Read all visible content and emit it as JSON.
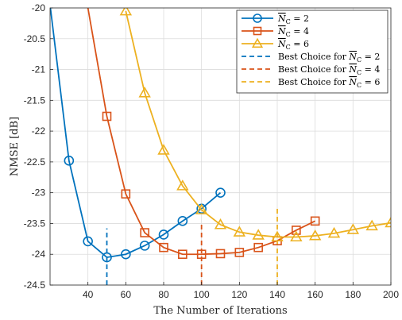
{
  "chart_data": {
    "type": "line",
    "title": "",
    "xlabel": "The Number of Iterations",
    "ylabel": "NMSE [dB]",
    "xlim": [
      20,
      200
    ],
    "ylim": [
      -24.5,
      -20
    ],
    "xticks": [
      40,
      60,
      80,
      100,
      120,
      140,
      160,
      180,
      200
    ],
    "yticks": [
      -24.5,
      -24,
      -23.5,
      -23,
      -22.5,
      -22,
      -21.5,
      -21,
      -20.5,
      -20
    ],
    "xtick_labels": [
      "40",
      "60",
      "80",
      "100",
      "120",
      "140",
      "160",
      "180",
      "200"
    ],
    "ytick_labels": [
      "-24.5",
      "-24",
      "-23.5",
      "-23",
      "-22.5",
      "-22",
      "-21.5",
      "-21",
      "-20.5",
      "-20"
    ],
    "grid": true,
    "legend_position": "top-right",
    "series": [
      {
        "name": "N̅C = 2",
        "legend_var": "N",
        "legend_sub": "C",
        "legend_val": "= 2",
        "color": "#0072BD",
        "marker": "circle",
        "x": [
          20,
          30,
          40,
          50,
          60,
          70,
          80,
          90,
          100,
          110
        ],
        "y": [
          -19.95,
          -22.48,
          -23.79,
          -24.05,
          -24.0,
          -23.86,
          -23.68,
          -23.46,
          -23.26,
          -23.0
        ],
        "marker_from": 1
      },
      {
        "name": "N̅C = 4",
        "legend_var": "N",
        "legend_sub": "C",
        "legend_val": "= 4",
        "color": "#D95319",
        "marker": "square",
        "x": [
          40,
          50,
          60,
          70,
          80,
          90,
          100,
          110,
          120,
          130,
          140,
          150,
          160
        ],
        "y": [
          -20.0,
          -21.76,
          -23.02,
          -23.65,
          -23.89,
          -24.0,
          -24.0,
          -23.99,
          -23.97,
          -23.89,
          -23.78,
          -23.61,
          -23.46
        ],
        "marker_from": 1
      },
      {
        "name": "N̅C = 6",
        "legend_var": "N",
        "legend_sub": "C",
        "legend_val": "= 6",
        "color": "#EDB120",
        "marker": "triangle",
        "x": [
          60,
          70,
          80,
          90,
          100,
          110,
          120,
          130,
          140,
          150,
          160,
          170,
          180,
          190,
          200
        ],
        "y": [
          -20.05,
          -21.38,
          -22.31,
          -22.89,
          -23.28,
          -23.52,
          -23.64,
          -23.69,
          -23.72,
          -23.72,
          -23.7,
          -23.66,
          -23.6,
          -23.54,
          -23.49
        ],
        "marker_from": 0
      }
    ],
    "vertical_lines": [
      {
        "name": "Best Choice for N̅C = 2",
        "legend_prefix": "Best Choice for",
        "legend_var": "N",
        "legend_sub": "C",
        "legend_val": "= 2",
        "color": "#0072BD",
        "x": 50,
        "y_range": [
          -24.5,
          -23.58
        ]
      },
      {
        "name": "Best Choice for N̅C = 4",
        "legend_prefix": "Best Choice for",
        "legend_var": "N",
        "legend_sub": "C",
        "legend_val": "= 4",
        "color": "#D95319",
        "x": 100,
        "y_range": [
          -24.5,
          -23.5
        ]
      },
      {
        "name": "Best Choice for N̅C = 6",
        "legend_prefix": "Best Choice for",
        "legend_var": "N",
        "legend_sub": "C",
        "legend_val": "= 6",
        "color": "#EDB120",
        "x": 140,
        "y_range": [
          -24.5,
          -23.25
        ]
      }
    ]
  }
}
